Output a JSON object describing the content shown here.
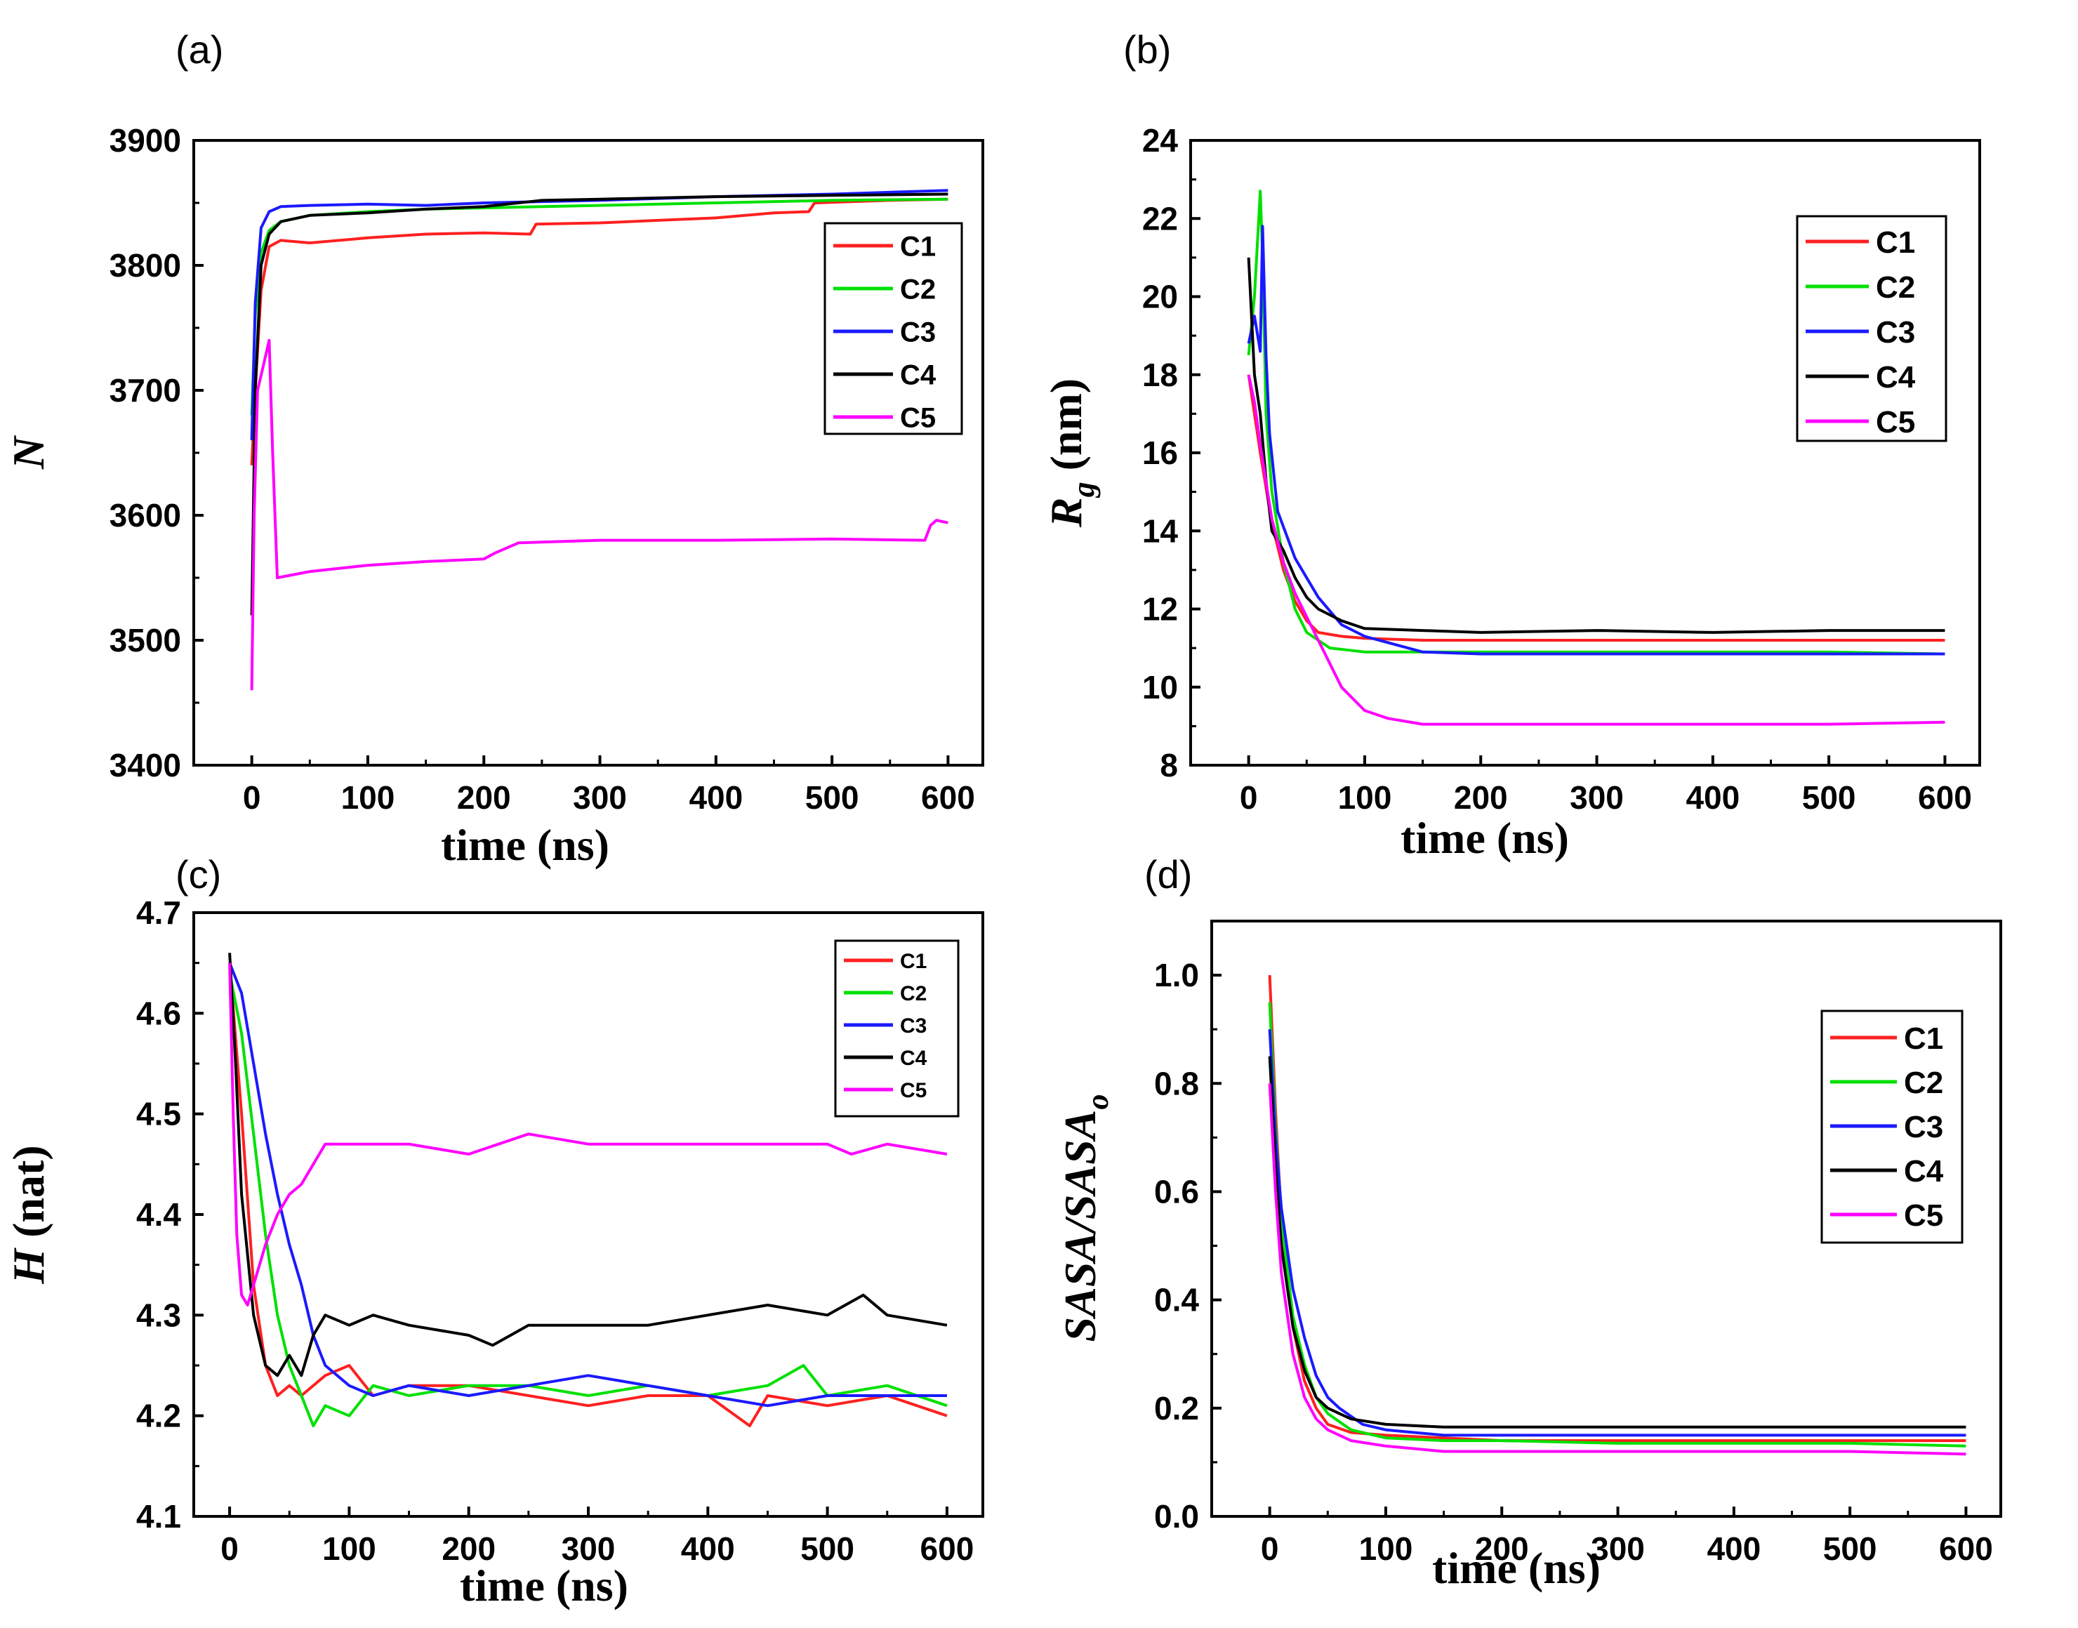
{
  "chart_data": [
    {
      "type": "line",
      "panel_label": "(a)",
      "xlabel": "time (ns)",
      "ylabel": "N",
      "xlim": [
        -50,
        630
      ],
      "ylim": [
        3400,
        3900
      ],
      "xticks": [
        0,
        100,
        200,
        300,
        400,
        500,
        600
      ],
      "yticks": [
        3400,
        3500,
        3600,
        3700,
        3800,
        3900
      ],
      "legend_position": "top-right",
      "series": [
        {
          "name": "C1",
          "color": "#ff2020",
          "x": [
            0,
            3,
            8,
            15,
            25,
            50,
            100,
            150,
            200,
            240,
            245,
            300,
            350,
            400,
            450,
            480,
            485,
            550,
            600
          ],
          "y": [
            3640,
            3700,
            3780,
            3815,
            3820,
            3818,
            3822,
            3825,
            3826,
            3825,
            3833,
            3834,
            3836,
            3838,
            3842,
            3843,
            3850,
            3852,
            3853
          ]
        },
        {
          "name": "C2",
          "color": "#00e000",
          "x": [
            0,
            3,
            8,
            15,
            25,
            50,
            100,
            150,
            200,
            300,
            400,
            500,
            600
          ],
          "y": [
            3680,
            3760,
            3810,
            3828,
            3835,
            3840,
            3843,
            3845,
            3846,
            3848,
            3850,
            3852,
            3853
          ]
        },
        {
          "name": "C3",
          "color": "#1a1aff",
          "x": [
            0,
            3,
            8,
            15,
            25,
            50,
            100,
            150,
            200,
            300,
            400,
            500,
            600
          ],
          "y": [
            3660,
            3770,
            3830,
            3843,
            3847,
            3848,
            3849,
            3848,
            3850,
            3852,
            3855,
            3857,
            3860
          ]
        },
        {
          "name": "C4",
          "color": "#000000",
          "x": [
            0,
            3,
            8,
            15,
            25,
            50,
            100,
            150,
            200,
            250,
            300,
            400,
            500,
            600
          ],
          "y": [
            3520,
            3700,
            3800,
            3825,
            3835,
            3840,
            3842,
            3845,
            3847,
            3852,
            3853,
            3855,
            3856,
            3857
          ]
        },
        {
          "name": "C5",
          "color": "#ff00ff",
          "x": [
            0,
            2,
            5,
            10,
            15,
            18,
            22,
            50,
            100,
            150,
            200,
            210,
            230,
            300,
            400,
            500,
            580,
            585,
            590,
            600
          ],
          "y": [
            3460,
            3600,
            3700,
            3720,
            3740,
            3650,
            3550,
            3555,
            3560,
            3563,
            3565,
            3570,
            3578,
            3580,
            3580,
            3581,
            3580,
            3592,
            3596,
            3594
          ]
        }
      ]
    },
    {
      "type": "line",
      "panel_label": "(b)",
      "xlabel": "time (ns)",
      "ylabel": "R",
      "ylabel_subscript": "g",
      "ylabel_unit": " (nm)",
      "xlim": [
        -50,
        630
      ],
      "ylim": [
        8,
        24
      ],
      "xticks": [
        0,
        100,
        200,
        300,
        400,
        500,
        600
      ],
      "yticks": [
        8,
        10,
        12,
        14,
        16,
        18,
        20,
        22,
        24
      ],
      "legend_position": "top-right",
      "series": [
        {
          "name": "C1",
          "color": "#ff2020",
          "x": [
            0,
            5,
            10,
            20,
            30,
            40,
            50,
            60,
            80,
            100,
            150,
            200,
            300,
            400,
            500,
            600
          ],
          "y": [
            18.0,
            17.0,
            16.0,
            14.2,
            13.0,
            12.2,
            11.7,
            11.4,
            11.3,
            11.25,
            11.2,
            11.2,
            11.2,
            11.2,
            11.2,
            11.2
          ]
        },
        {
          "name": "C2",
          "color": "#00e000",
          "x": [
            0,
            5,
            10,
            12,
            15,
            20,
            30,
            40,
            50,
            70,
            100,
            150,
            200,
            300,
            400,
            500,
            600
          ],
          "y": [
            18.5,
            20.0,
            22.7,
            21.0,
            17.0,
            15.0,
            13.2,
            12.0,
            11.4,
            11.0,
            10.9,
            10.9,
            10.9,
            10.9,
            10.9,
            10.9,
            10.85
          ]
        },
        {
          "name": "C3",
          "color": "#1a1aff",
          "x": [
            0,
            5,
            10,
            12,
            15,
            18,
            25,
            40,
            60,
            80,
            100,
            150,
            200,
            300,
            400,
            500,
            600
          ],
          "y": [
            18.8,
            19.5,
            18.6,
            21.8,
            18.5,
            16.5,
            14.5,
            13.3,
            12.3,
            11.6,
            11.3,
            10.9,
            10.85,
            10.85,
            10.85,
            10.85,
            10.85
          ]
        },
        {
          "name": "C4",
          "color": "#000000",
          "x": [
            0,
            5,
            10,
            15,
            20,
            30,
            40,
            50,
            60,
            80,
            100,
            150,
            200,
            300,
            400,
            500,
            600
          ],
          "y": [
            21.0,
            18.0,
            17.0,
            15.3,
            14.0,
            13.5,
            12.8,
            12.3,
            12.0,
            11.7,
            11.5,
            11.45,
            11.4,
            11.45,
            11.4,
            11.45,
            11.45
          ]
        },
        {
          "name": "C5",
          "color": "#ff00ff",
          "x": [
            0,
            5,
            10,
            20,
            30,
            40,
            50,
            60,
            70,
            80,
            100,
            120,
            150,
            200,
            300,
            400,
            500,
            600
          ],
          "y": [
            18.0,
            17.3,
            16.2,
            14.3,
            13.2,
            12.4,
            11.8,
            11.2,
            10.6,
            10.0,
            9.4,
            9.2,
            9.05,
            9.05,
            9.05,
            9.05,
            9.05,
            9.1
          ]
        }
      ]
    },
    {
      "type": "line",
      "panel_label": "(c)",
      "xlabel": "time (ns)",
      "ylabel": "H",
      "ylabel_unit": " (nat)",
      "xlim": [
        -30,
        630
      ],
      "ylim": [
        4.1,
        4.7
      ],
      "xticks": [
        0,
        100,
        200,
        300,
        400,
        500,
        600
      ],
      "yticks": [
        4.1,
        4.2,
        4.3,
        4.4,
        4.5,
        4.6,
        4.7
      ],
      "legend_position": "top-right",
      "series": [
        {
          "name": "C1",
          "color": "#ff2020",
          "x": [
            0,
            10,
            20,
            30,
            40,
            50,
            60,
            80,
            100,
            120,
            150,
            200,
            250,
            300,
            350,
            400,
            435,
            450,
            500,
            550,
            600
          ],
          "y": [
            4.65,
            4.5,
            4.33,
            4.25,
            4.22,
            4.23,
            4.22,
            4.24,
            4.25,
            4.22,
            4.23,
            4.23,
            4.22,
            4.21,
            4.22,
            4.22,
            4.19,
            4.22,
            4.21,
            4.22,
            4.2
          ]
        },
        {
          "name": "C2",
          "color": "#00e000",
          "x": [
            0,
            10,
            20,
            30,
            40,
            50,
            60,
            70,
            80,
            100,
            120,
            150,
            200,
            250,
            300,
            350,
            400,
            450,
            480,
            500,
            550,
            600
          ],
          "y": [
            4.64,
            4.58,
            4.48,
            4.38,
            4.3,
            4.25,
            4.22,
            4.19,
            4.21,
            4.2,
            4.23,
            4.22,
            4.23,
            4.23,
            4.22,
            4.23,
            4.22,
            4.23,
            4.25,
            4.22,
            4.23,
            4.21
          ]
        },
        {
          "name": "C3",
          "color": "#1a1aff",
          "x": [
            0,
            10,
            20,
            30,
            40,
            50,
            60,
            70,
            80,
            100,
            120,
            150,
            200,
            250,
            300,
            350,
            400,
            450,
            500,
            550,
            600
          ],
          "y": [
            4.65,
            4.62,
            4.55,
            4.48,
            4.42,
            4.37,
            4.33,
            4.28,
            4.25,
            4.23,
            4.22,
            4.23,
            4.22,
            4.23,
            4.24,
            4.23,
            4.22,
            4.21,
            4.22,
            4.22,
            4.22
          ]
        },
        {
          "name": "C4",
          "color": "#000000",
          "x": [
            0,
            5,
            10,
            20,
            30,
            40,
            50,
            60,
            70,
            80,
            100,
            120,
            150,
            200,
            220,
            250,
            300,
            350,
            400,
            450,
            500,
            530,
            550,
            600
          ],
          "y": [
            4.66,
            4.55,
            4.42,
            4.3,
            4.25,
            4.24,
            4.26,
            4.24,
            4.28,
            4.3,
            4.29,
            4.3,
            4.29,
            4.28,
            4.27,
            4.29,
            4.29,
            4.29,
            4.3,
            4.31,
            4.3,
            4.32,
            4.3,
            4.29
          ]
        },
        {
          "name": "C5",
          "color": "#ff00ff",
          "x": [
            0,
            3,
            6,
            10,
            15,
            20,
            30,
            40,
            50,
            60,
            70,
            80,
            100,
            150,
            200,
            250,
            300,
            350,
            400,
            450,
            500,
            520,
            550,
            600
          ],
          "y": [
            4.65,
            4.5,
            4.38,
            4.32,
            4.31,
            4.33,
            4.37,
            4.4,
            4.42,
            4.43,
            4.45,
            4.47,
            4.47,
            4.47,
            4.46,
            4.48,
            4.47,
            4.47,
            4.47,
            4.47,
            4.47,
            4.46,
            4.47,
            4.46
          ]
        }
      ]
    },
    {
      "type": "line",
      "panel_label": "(d)",
      "xlabel": "time (ns)",
      "ylabel": "SASA/SASA",
      "ylabel_subscript": "o",
      "xlim": [
        -50,
        630
      ],
      "ylim": [
        0.0,
        1.1
      ],
      "xticks": [
        0,
        100,
        200,
        300,
        400,
        500,
        600
      ],
      "yticks": [
        0.0,
        0.2,
        0.4,
        0.6,
        0.8,
        1.0
      ],
      "ytick_labels": [
        "0.0",
        "0.2",
        "0.4",
        "0.6",
        "0.8",
        "1.0"
      ],
      "legend_position": "top-right",
      "series": [
        {
          "name": "C1",
          "color": "#ff2020",
          "x": [
            0,
            5,
            10,
            20,
            30,
            40,
            50,
            70,
            100,
            150,
            200,
            300,
            400,
            500,
            600
          ],
          "y": [
            1.0,
            0.75,
            0.55,
            0.35,
            0.25,
            0.2,
            0.17,
            0.155,
            0.15,
            0.145,
            0.14,
            0.14,
            0.14,
            0.14,
            0.14
          ]
        },
        {
          "name": "C2",
          "color": "#00e000",
          "x": [
            0,
            5,
            10,
            20,
            30,
            40,
            50,
            70,
            100,
            150,
            200,
            300,
            400,
            500,
            600
          ],
          "y": [
            0.95,
            0.72,
            0.55,
            0.37,
            0.28,
            0.22,
            0.19,
            0.16,
            0.145,
            0.14,
            0.14,
            0.135,
            0.135,
            0.135,
            0.13
          ]
        },
        {
          "name": "C3",
          "color": "#1a1aff",
          "x": [
            0,
            5,
            10,
            20,
            30,
            40,
            50,
            60,
            70,
            80,
            100,
            150,
            200,
            300,
            400,
            500,
            600
          ],
          "y": [
            0.9,
            0.7,
            0.57,
            0.42,
            0.33,
            0.26,
            0.22,
            0.2,
            0.185,
            0.17,
            0.16,
            0.15,
            0.15,
            0.15,
            0.15,
            0.15,
            0.15
          ]
        },
        {
          "name": "C4",
          "color": "#000000",
          "x": [
            0,
            5,
            10,
            20,
            30,
            40,
            50,
            70,
            100,
            150,
            200,
            300,
            400,
            500,
            600
          ],
          "y": [
            0.85,
            0.65,
            0.5,
            0.35,
            0.27,
            0.22,
            0.2,
            0.18,
            0.17,
            0.165,
            0.165,
            0.165,
            0.165,
            0.165,
            0.165
          ]
        },
        {
          "name": "C5",
          "color": "#ff00ff",
          "x": [
            0,
            5,
            10,
            20,
            30,
            40,
            50,
            70,
            100,
            150,
            200,
            300,
            400,
            500,
            600
          ],
          "y": [
            0.8,
            0.6,
            0.45,
            0.3,
            0.22,
            0.18,
            0.16,
            0.14,
            0.13,
            0.12,
            0.12,
            0.12,
            0.12,
            0.12,
            0.115
          ]
        }
      ]
    }
  ]
}
